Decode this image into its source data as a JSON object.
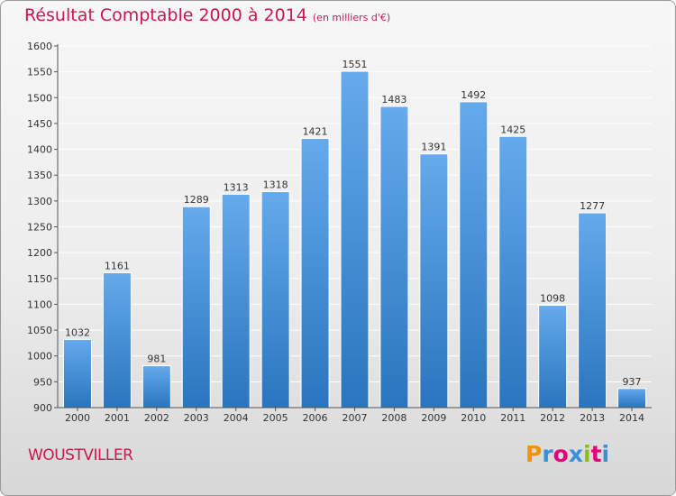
{
  "header": {
    "title": "Résultat Comptable 2000 à 2014",
    "unit": "(en milliers d'€)"
  },
  "footer": {
    "commune": "WOUSTVILLER",
    "logo_text": "Proxiti",
    "logo_colors": [
      "#f29400",
      "#3a8fd9",
      "#e3007a",
      "#3a8fd9",
      "#8cbd1f",
      "#e3007a",
      "#3a8fd9"
    ]
  },
  "colors": {
    "title": "#c8184d",
    "bar_top": "#64aaec",
    "bar_bottom": "#2a75be",
    "grid": "#ffffff",
    "axis": "#555555",
    "text": "#333333"
  },
  "chart_data": {
    "type": "bar",
    "title": "Résultat Comptable 2000 à 2014",
    "xlabel": "",
    "ylabel": "",
    "grid": true,
    "ylim": [
      900,
      1600
    ],
    "yticks": [
      900,
      950,
      1000,
      1050,
      1100,
      1150,
      1200,
      1250,
      1300,
      1350,
      1400,
      1450,
      1500,
      1550,
      1600
    ],
    "categories": [
      "2000",
      "2001",
      "2002",
      "2003",
      "2004",
      "2005",
      "2006",
      "2007",
      "2008",
      "2009",
      "2010",
      "2011",
      "2012",
      "2013",
      "2014"
    ],
    "values": [
      1032,
      1161,
      981,
      1289,
      1313,
      1318,
      1421,
      1551,
      1483,
      1391,
      1492,
      1425,
      1098,
      1277,
      937
    ]
  }
}
